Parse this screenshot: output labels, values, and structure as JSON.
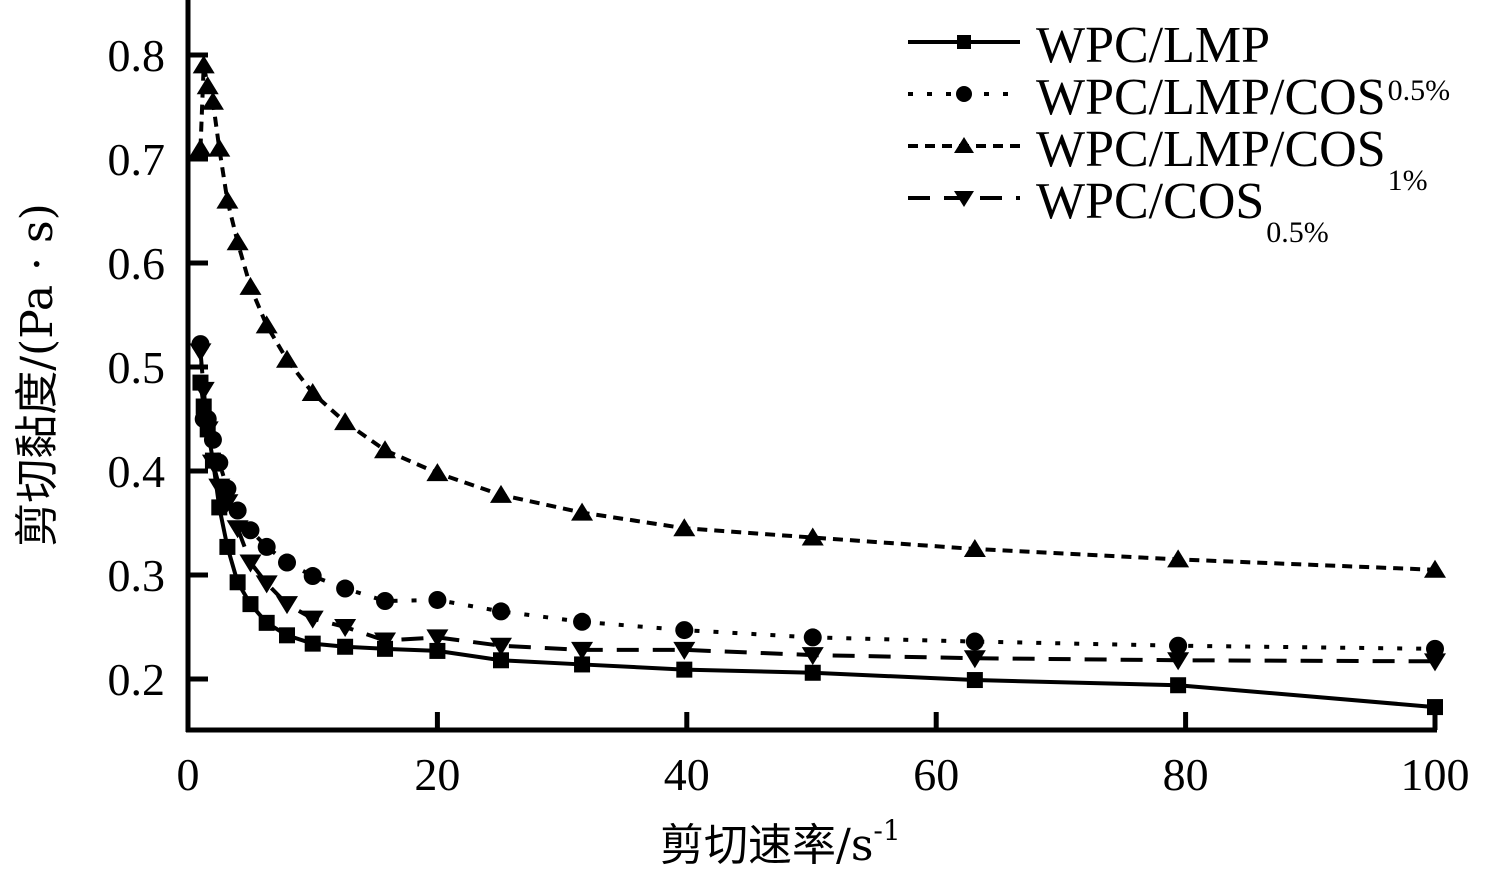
{
  "chart_data": {
    "type": "line",
    "title": "",
    "xlabel": "剪切速率/s⁻¹",
    "xlabel_main": "剪切速率/s",
    "xlabel_sup": "-1",
    "ylabel": "剪切黏度/(Pa · s)",
    "xlim": [
      0,
      100
    ],
    "ylim": [
      0.15,
      0.85
    ],
    "xticks": [
      0,
      20,
      40,
      60,
      80,
      100
    ],
    "xtick_labels": [
      "0",
      "20",
      "40",
      "60",
      "80",
      "100"
    ],
    "yticks": [
      0.2,
      0.3,
      0.4,
      0.5,
      0.6,
      0.7,
      0.8
    ],
    "ytick_labels": [
      "0.2",
      "0.3",
      "0.4",
      "0.5",
      "0.6",
      "0.7",
      "0.8"
    ],
    "grid": false,
    "legend_position": "upper right",
    "x": [
      1,
      1.26,
      1.58,
      2,
      2.51,
      3.16,
      3.98,
      5.01,
      6.31,
      7.94,
      10,
      12.6,
      15.8,
      20,
      25.1,
      31.6,
      39.8,
      50.1,
      63.1,
      79.4,
      100
    ],
    "series": [
      {
        "name": "WPC/LMP",
        "label_main": "WPC/LMP",
        "label_sub": "",
        "label_sub_pos": "",
        "marker": "square",
        "line_style": "solid",
        "values": [
          0.485,
          0.462,
          0.44,
          0.41,
          0.365,
          0.327,
          0.293,
          0.272,
          0.254,
          0.242,
          0.234,
          0.231,
          0.229,
          0.227,
          0.218,
          0.214,
          0.209,
          0.206,
          0.199,
          0.194,
          0.173
        ]
      },
      {
        "name": "WPC/LMP/COS0.5%",
        "label_main": "WPC/LMP/COS",
        "label_sub": "0.5%",
        "label_sub_pos": "super",
        "marker": "circle",
        "line_style": "dotted",
        "values": [
          0.522,
          0.45,
          0.45,
          0.43,
          0.408,
          0.383,
          0.362,
          0.343,
          0.327,
          0.312,
          0.299,
          0.287,
          0.275,
          0.276,
          0.265,
          0.255,
          0.247,
          0.24,
          0.236,
          0.232,
          0.229
        ]
      },
      {
        "name": "WPC/LMP/COS1%",
        "label_main": "WPC/LMP/COS",
        "label_sub": "1%",
        "label_sub_pos": "sub",
        "marker": "triangle-up",
        "line_style": "short-dash",
        "values": [
          0.71,
          0.79,
          0.77,
          0.755,
          0.71,
          0.66,
          0.62,
          0.577,
          0.54,
          0.507,
          0.475,
          0.447,
          0.42,
          0.398,
          0.377,
          0.36,
          0.345,
          0.336,
          0.325,
          0.315,
          0.305
        ]
      },
      {
        "name": "WPC/COS0.5%",
        "label_main": "WPC/COS",
        "label_sub": "0.5%",
        "label_sub_pos": "sub",
        "marker": "triangle-down",
        "line_style": "dashed",
        "values": [
          0.515,
          0.478,
          0.44,
          0.408,
          0.385,
          0.37,
          0.345,
          0.312,
          0.292,
          0.272,
          0.258,
          0.25,
          0.237,
          0.24,
          0.232,
          0.228,
          0.228,
          0.223,
          0.22,
          0.218,
          0.217
        ]
      }
    ]
  },
  "colors": {
    "foreground": "#000000",
    "background": "#ffffff"
  }
}
